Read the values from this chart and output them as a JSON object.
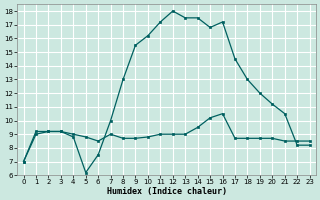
{
  "xlabel": "Humidex (Indice chaleur)",
  "background_color": "#cce8e0",
  "grid_color": "#b0d8d0",
  "line_color": "#006060",
  "xlim": [
    -0.5,
    23.5
  ],
  "ylim": [
    6,
    18.5
  ],
  "yticks": [
    6,
    7,
    8,
    9,
    10,
    11,
    12,
    13,
    14,
    15,
    16,
    17,
    18
  ],
  "xticks": [
    0,
    1,
    2,
    3,
    4,
    5,
    6,
    7,
    8,
    9,
    10,
    11,
    12,
    13,
    14,
    15,
    16,
    17,
    18,
    19,
    20,
    21,
    22,
    23
  ],
  "line1_x": [
    0,
    1,
    2,
    3,
    4,
    5,
    6,
    7,
    8,
    9,
    10,
    11,
    12,
    13,
    14,
    15,
    16,
    17,
    18,
    19,
    20,
    21,
    22,
    23
  ],
  "line1_y": [
    7.0,
    9.2,
    9.2,
    9.2,
    8.8,
    6.2,
    7.5,
    10.0,
    13.0,
    15.5,
    16.2,
    17.2,
    18.0,
    17.5,
    17.5,
    16.8,
    17.2,
    14.5,
    13.0,
    12.0,
    11.2,
    10.5,
    8.2,
    8.2
  ],
  "line2_x": [
    0,
    1,
    2,
    3,
    4,
    5,
    6,
    7,
    8,
    9,
    10,
    11,
    12,
    13,
    14,
    15,
    16,
    17,
    18,
    19,
    20,
    21,
    22,
    23
  ],
  "line2_y": [
    7.0,
    9.0,
    9.2,
    9.2,
    9.0,
    8.8,
    8.5,
    9.0,
    8.7,
    8.7,
    8.8,
    9.0,
    9.0,
    9.0,
    9.5,
    10.2,
    10.5,
    8.7,
    8.7,
    8.7,
    8.7,
    8.5,
    8.5,
    8.5
  ]
}
